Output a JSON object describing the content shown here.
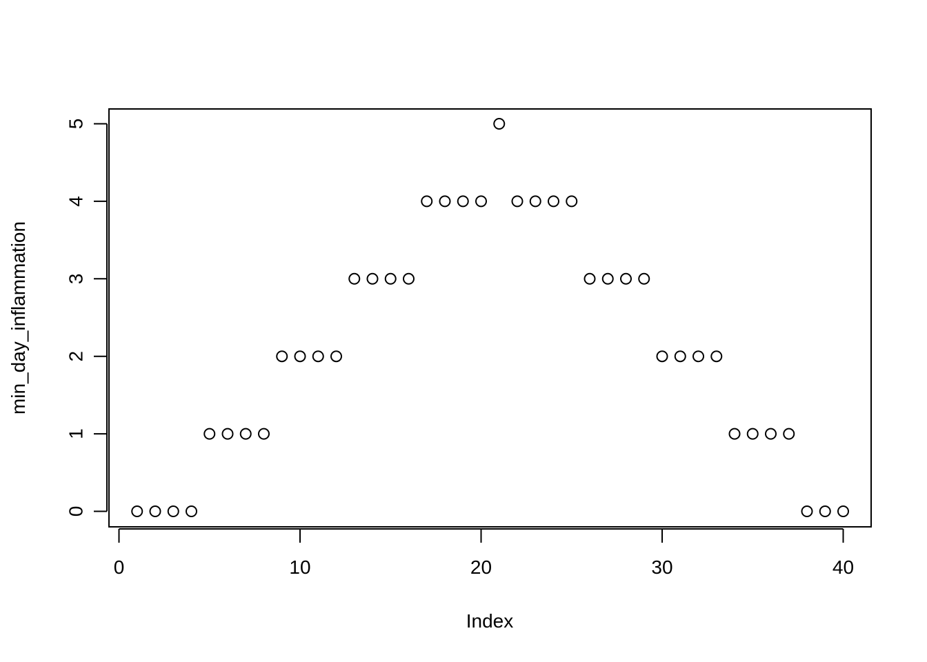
{
  "chart_data": {
    "type": "scatter",
    "title": "",
    "xlabel": "Index",
    "ylabel": "min_day_inflammation",
    "xlim": [
      0,
      40
    ],
    "ylim": [
      0,
      5
    ],
    "x_ticks": [
      "0",
      "10",
      "20",
      "30",
      "40"
    ],
    "y_ticks": [
      "0",
      "1",
      "2",
      "3",
      "4",
      "5"
    ],
    "grid": false,
    "legend": "none",
    "marker": "open-circle",
    "x": [
      1,
      2,
      3,
      4,
      5,
      6,
      7,
      8,
      9,
      10,
      11,
      12,
      13,
      14,
      15,
      16,
      17,
      18,
      19,
      20,
      21,
      22,
      23,
      24,
      25,
      26,
      27,
      28,
      29,
      30,
      31,
      32,
      33,
      34,
      35,
      36,
      37,
      38,
      39,
      40
    ],
    "y": [
      0,
      0,
      0,
      0,
      1,
      1,
      1,
      1,
      2,
      2,
      2,
      2,
      3,
      3,
      3,
      3,
      4,
      4,
      4,
      4,
      5,
      4,
      4,
      4,
      4,
      3,
      3,
      3,
      3,
      2,
      2,
      2,
      2,
      1,
      1,
      1,
      1,
      0,
      0,
      0
    ]
  }
}
